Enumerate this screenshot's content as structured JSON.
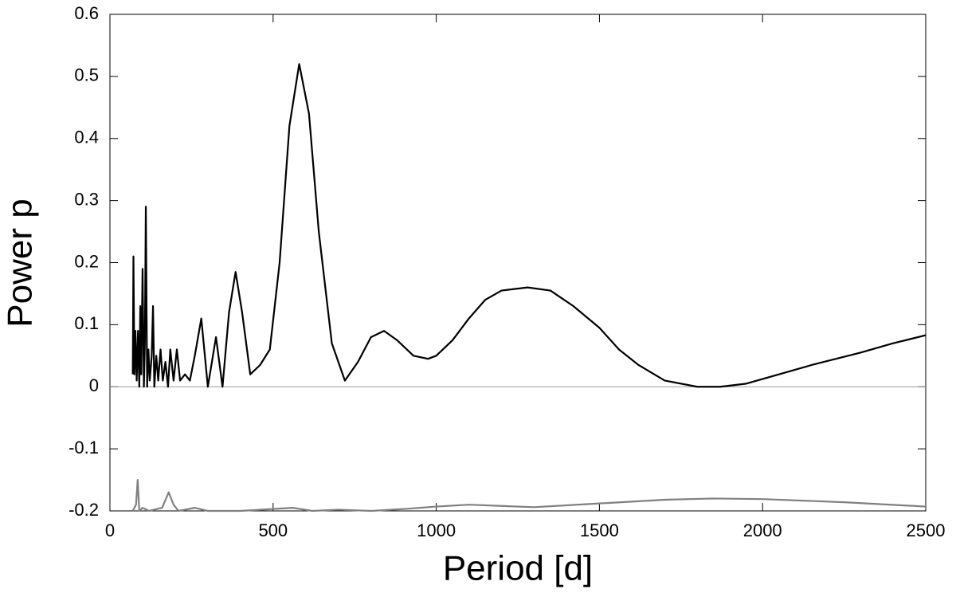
{
  "chart_data": {
    "type": "line",
    "xlabel": "Period [d]",
    "ylabel": "Power p",
    "xlim": [
      0,
      2500
    ],
    "xticks": [
      0,
      500,
      1000,
      1500,
      2000,
      2500
    ],
    "ylim": [
      -0.2,
      0.6
    ],
    "yticks": [
      -0.2,
      -0.1,
      0,
      0.1,
      0.2,
      0.3,
      0.4,
      0.5,
      0.6
    ],
    "hline": 0,
    "series": [
      {
        "color": "#000000",
        "x": [
          70,
          72,
          75,
          78,
          82,
          86,
          90,
          93,
          96,
          100,
          104,
          107,
          110,
          114,
          118,
          122,
          128,
          132,
          136,
          142,
          148,
          155,
          162,
          170,
          178,
          185,
          195,
          205,
          215,
          230,
          245,
          260,
          280,
          300,
          325,
          345,
          365,
          385,
          405,
          430,
          460,
          490,
          520,
          550,
          580,
          610,
          640,
          680,
          720,
          760,
          800,
          840,
          880,
          930,
          975,
          1000,
          1050,
          1100,
          1150,
          1200,
          1280,
          1350,
          1420,
          1500,
          1560,
          1620,
          1700,
          1800,
          1870,
          1950,
          2050,
          2150,
          2300,
          2400,
          2500
        ],
        "values": [
          0.02,
          0.21,
          0.02,
          0.09,
          0.01,
          0.09,
          0.0,
          0.13,
          0.02,
          0.19,
          0.0,
          0.07,
          0.29,
          0.0,
          0.06,
          0.01,
          0.05,
          0.13,
          0.0,
          0.05,
          0.01,
          0.06,
          0.01,
          0.04,
          0.0,
          0.06,
          0.01,
          0.06,
          0.01,
          0.02,
          0.01,
          0.05,
          0.11,
          0.0,
          0.08,
          0.0,
          0.12,
          0.185,
          0.12,
          0.02,
          0.035,
          0.06,
          0.2,
          0.42,
          0.52,
          0.44,
          0.25,
          0.07,
          0.01,
          0.04,
          0.08,
          0.09,
          0.075,
          0.05,
          0.045,
          0.05,
          0.075,
          0.11,
          0.14,
          0.155,
          0.16,
          0.155,
          0.13,
          0.095,
          0.06,
          0.035,
          0.01,
          0.0,
          0.0,
          0.005,
          0.02,
          0.035,
          0.055,
          0.07,
          0.083
        ]
      },
      {
        "color": "#808080",
        "x": [
          70,
          80,
          85,
          90,
          100,
          120,
          160,
          180,
          195,
          210,
          260,
          300,
          400,
          560,
          620,
          700,
          800,
          900,
          1000,
          1100,
          1300,
          1500,
          1700,
          1850,
          2000,
          2250,
          2500
        ],
        "values": [
          -0.2,
          -0.19,
          -0.15,
          -0.2,
          -0.195,
          -0.2,
          -0.195,
          -0.17,
          -0.19,
          -0.2,
          -0.195,
          -0.2,
          -0.2,
          -0.195,
          -0.2,
          -0.198,
          -0.2,
          -0.197,
          -0.193,
          -0.19,
          -0.194,
          -0.188,
          -0.182,
          -0.18,
          -0.181,
          -0.186,
          -0.193
        ]
      }
    ]
  }
}
